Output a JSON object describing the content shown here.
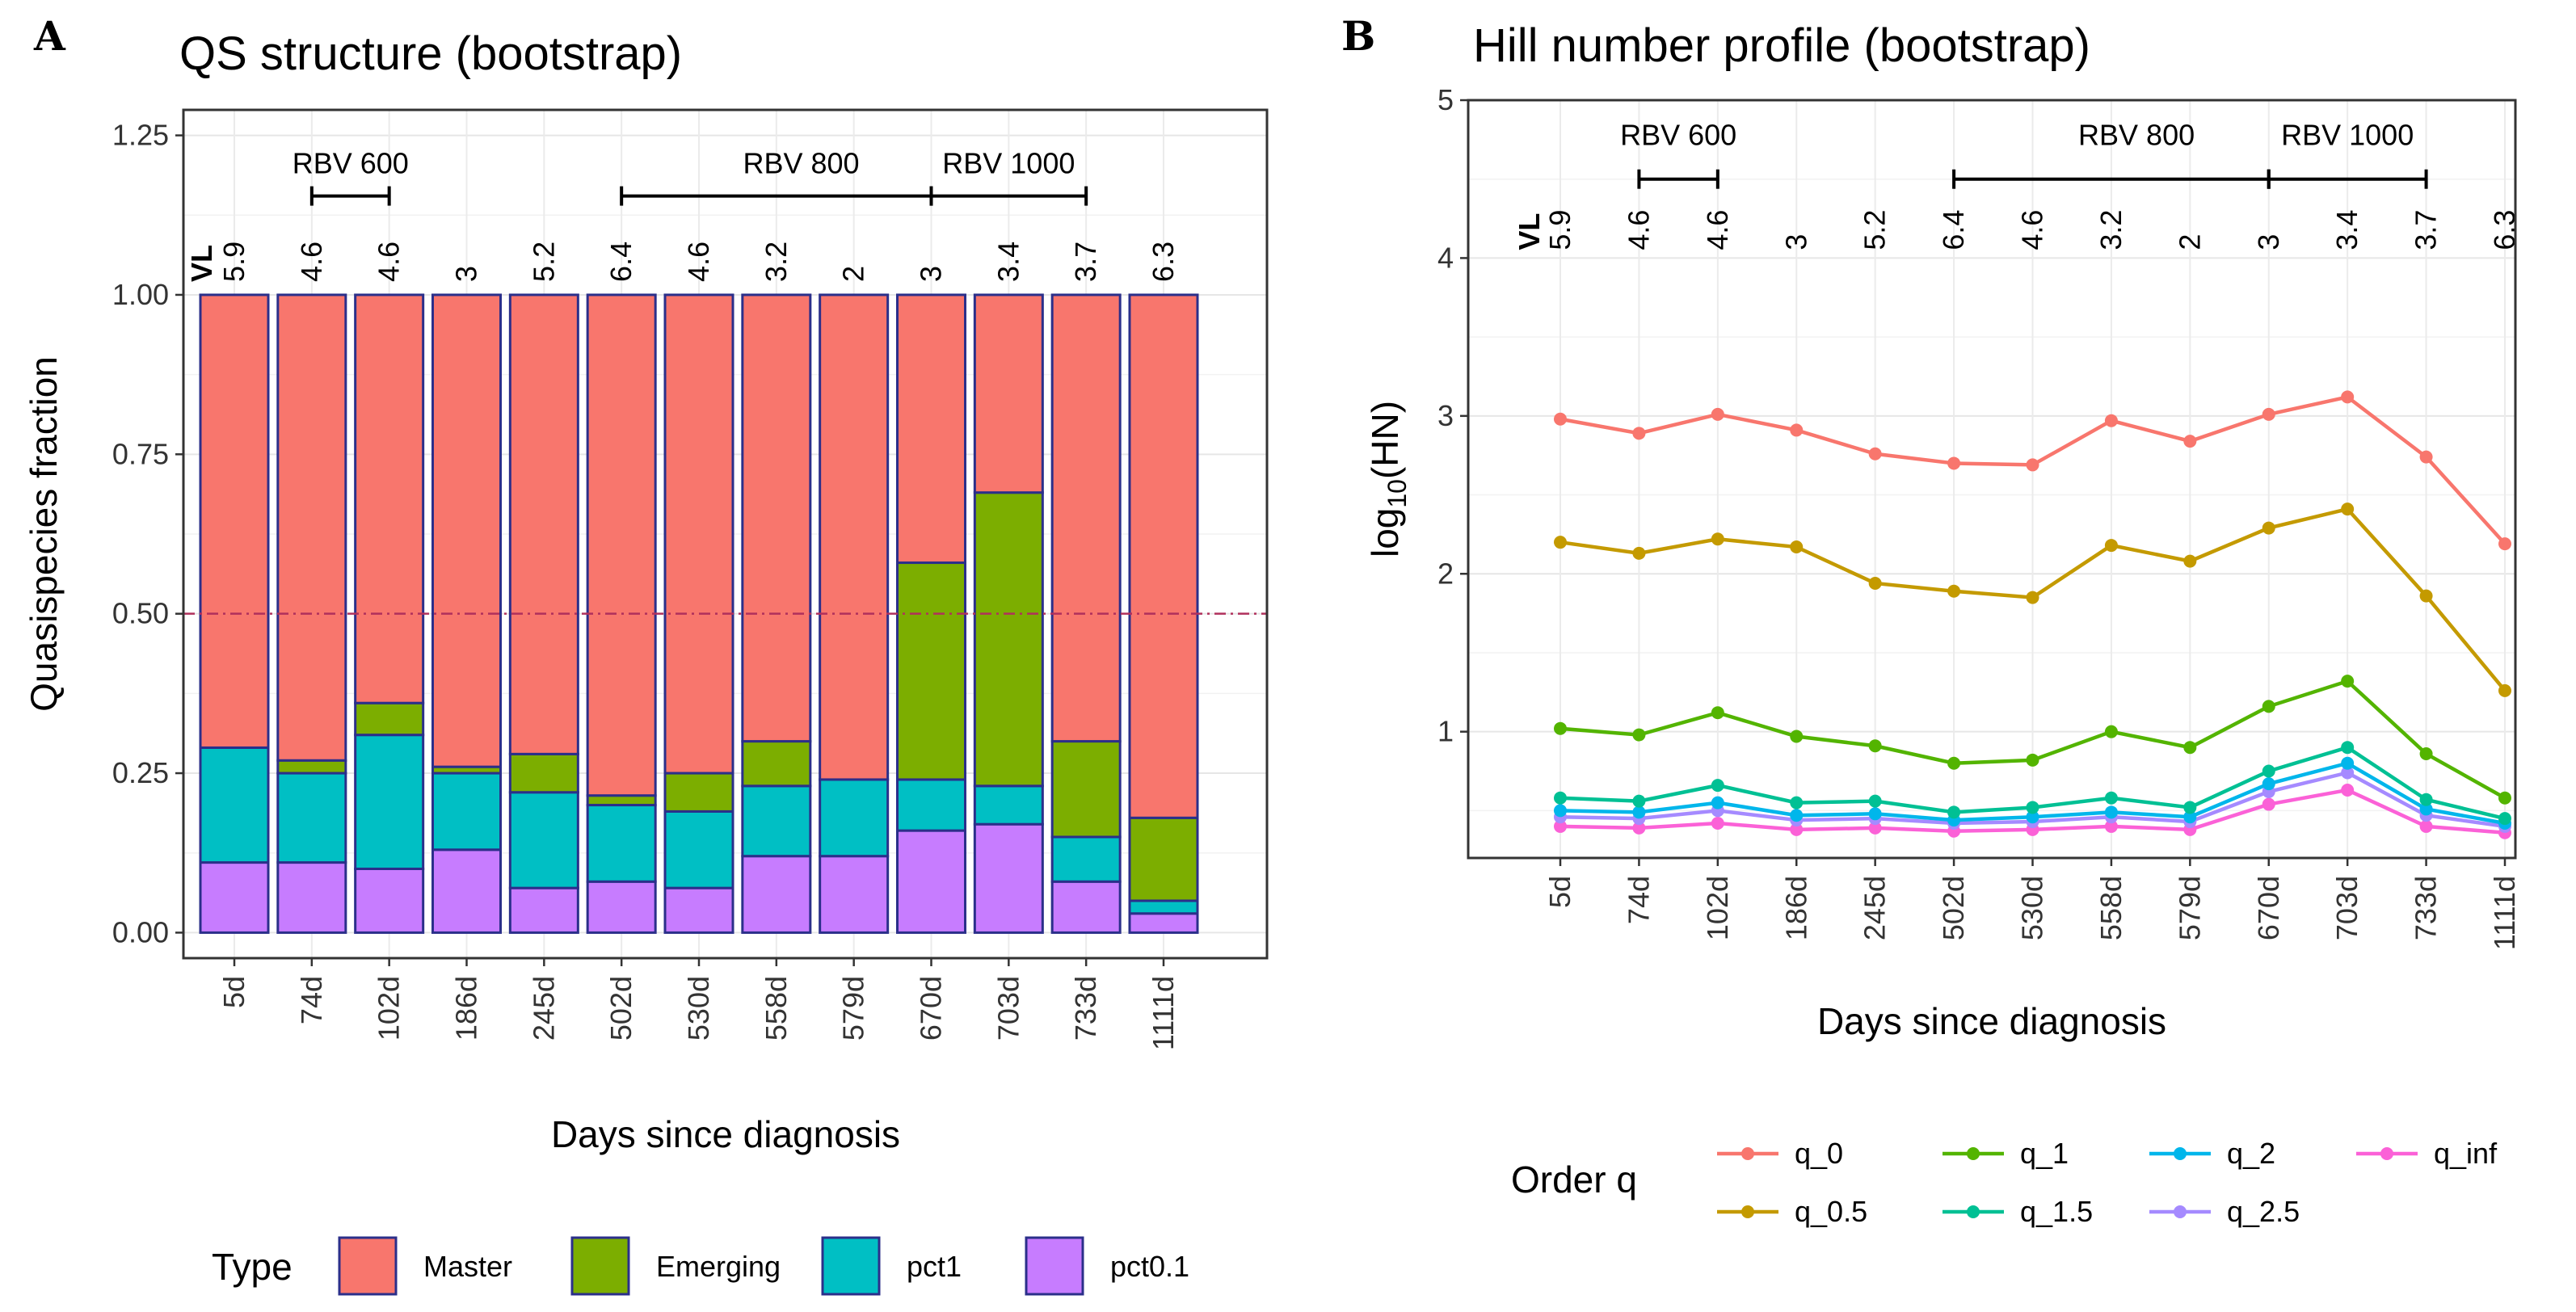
{
  "chart_data": [
    {
      "panel": "A",
      "type": "bar",
      "stacked": true,
      "title": "QS structure (bootstrap)",
      "xlabel": "Days since diagnosis",
      "ylabel": "Quasispecies fraction",
      "ylim": [
        -0.04,
        1.29
      ],
      "yticks": [
        "0.00",
        "0.25",
        "0.50",
        "0.75",
        "1.00",
        "1.25"
      ],
      "ytick_values": [
        0,
        0.25,
        0.5,
        0.75,
        1.0,
        1.25
      ],
      "hline": 0.5,
      "categories": [
        "5d",
        "74d",
        "102d",
        "186d",
        "245d",
        "502d",
        "530d",
        "558d",
        "579d",
        "670d",
        "703d",
        "733d",
        "1111d"
      ],
      "vl_header": "VL",
      "vl": [
        "5.9",
        "4.6",
        "4.6",
        "3",
        "5.2",
        "6.4",
        "4.6",
        "3.2",
        "2",
        "3",
        "3.4",
        "3.7",
        "6.3"
      ],
      "rbv": [
        {
          "label": "RBV 600",
          "from": 1,
          "to": 2
        },
        {
          "label": "RBV 800",
          "from": 5,
          "to": 9
        },
        {
          "label": "RBV 1000",
          "from": 9,
          "to": 11
        }
      ],
      "legend_title": "Type",
      "series": [
        {
          "name": "pct0.1",
          "color": "#C77CFF",
          "values": [
            0.11,
            0.11,
            0.1,
            0.13,
            0.07,
            0.08,
            0.07,
            0.12,
            0.12,
            0.16,
            0.17,
            0.08,
            0.03
          ]
        },
        {
          "name": "pct1",
          "color": "#00BFC4",
          "values": [
            0.18,
            0.14,
            0.21,
            0.12,
            0.15,
            0.12,
            0.12,
            0.11,
            0.12,
            0.08,
            0.06,
            0.07,
            0.02
          ]
        },
        {
          "name": "Emerging",
          "color": "#7CAE00",
          "values": [
            0.0,
            0.02,
            0.05,
            0.01,
            0.06,
            0.015,
            0.06,
            0.07,
            0.0,
            0.34,
            0.46,
            0.15,
            0.13
          ]
        },
        {
          "name": "Master",
          "color": "#F8766D",
          "values": [
            0.71,
            0.73,
            0.64,
            0.74,
            0.72,
            0.785,
            0.75,
            0.7,
            0.76,
            0.42,
            0.31,
            0.7,
            0.82
          ]
        }
      ],
      "legend_order": [
        "Master",
        "Emerging",
        "pct1",
        "pct0.1"
      ]
    },
    {
      "panel": "B",
      "type": "line",
      "title": "Hill number profile (bootstrap)",
      "xlabel": "Days since diagnosis",
      "ylabel": "log10(HN)",
      "ylabel_base": "log",
      "ylabel_sub": "10",
      "ylabel_arg": "(HN)",
      "ylim": [
        0.2,
        5.0
      ],
      "yticks": [
        "1",
        "2",
        "3",
        "4",
        "5"
      ],
      "ytick_values": [
        1,
        2,
        3,
        4,
        5
      ],
      "categories": [
        "5d",
        "74d",
        "102d",
        "186d",
        "245d",
        "502d",
        "530d",
        "558d",
        "579d",
        "670d",
        "703d",
        "733d",
        "1111d"
      ],
      "vl_header": "VL",
      "vl": [
        "5.9",
        "4.6",
        "4.6",
        "3",
        "5.2",
        "6.4",
        "4.6",
        "3.2",
        "2",
        "3",
        "3.4",
        "3.7",
        "6.3"
      ],
      "rbv": [
        {
          "label": "RBV 600",
          "from": 1,
          "to": 2
        },
        {
          "label": "RBV 800",
          "from": 5,
          "to": 9
        },
        {
          "label": "RBV 1000",
          "from": 9,
          "to": 11
        }
      ],
      "legend_title": "Order q",
      "series": [
        {
          "name": "q_0",
          "color": "#F8766D",
          "values": [
            2.98,
            2.89,
            3.01,
            2.91,
            2.76,
            2.7,
            2.69,
            2.97,
            2.84,
            3.01,
            3.12,
            2.74,
            2.19
          ]
        },
        {
          "name": "q_0.5",
          "color": "#C49A00",
          "values": [
            2.2,
            2.13,
            2.22,
            2.17,
            1.94,
            1.89,
            1.85,
            2.18,
            2.08,
            2.29,
            2.41,
            1.86,
            1.26
          ]
        },
        {
          "name": "q_1",
          "color": "#53B400",
          "values": [
            1.02,
            0.98,
            1.12,
            0.97,
            0.91,
            0.8,
            0.82,
            1.0,
            0.9,
            1.16,
            1.32,
            0.86,
            0.58
          ]
        },
        {
          "name": "q_1.5",
          "color": "#00C094",
          "values": [
            0.58,
            0.56,
            0.66,
            0.55,
            0.56,
            0.49,
            0.52,
            0.58,
            0.52,
            0.75,
            0.9,
            0.57,
            0.45
          ]
        },
        {
          "name": "q_2",
          "color": "#00B6EB",
          "values": [
            0.5,
            0.49,
            0.55,
            0.47,
            0.48,
            0.44,
            0.46,
            0.49,
            0.46,
            0.67,
            0.8,
            0.51,
            0.42
          ]
        },
        {
          "name": "q_2.5",
          "color": "#A58AFF",
          "values": [
            0.46,
            0.45,
            0.5,
            0.44,
            0.45,
            0.42,
            0.43,
            0.46,
            0.43,
            0.62,
            0.74,
            0.47,
            0.4
          ]
        },
        {
          "name": "q_inf",
          "color": "#FB61D7",
          "values": [
            0.4,
            0.39,
            0.42,
            0.38,
            0.39,
            0.37,
            0.38,
            0.4,
            0.38,
            0.54,
            0.63,
            0.4,
            0.36
          ]
        }
      ],
      "legend_rows": [
        [
          "q_0",
          "q_1",
          "q_2",
          "q_inf"
        ],
        [
          "q_0.5",
          "q_1.5",
          "q_2.5"
        ]
      ]
    }
  ]
}
